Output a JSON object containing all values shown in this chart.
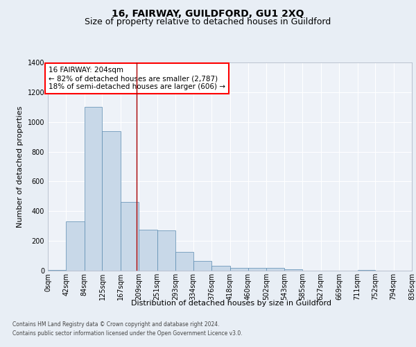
{
  "title": "16, FAIRWAY, GUILDFORD, GU1 2XQ",
  "subtitle": "Size of property relative to detached houses in Guildford",
  "xlabel": "Distribution of detached houses by size in Guildford",
  "ylabel": "Number of detached properties",
  "footer_line1": "Contains HM Land Registry data © Crown copyright and database right 2024.",
  "footer_line2": "Contains public sector information licensed under the Open Government Licence v3.0.",
  "bar_color": "#c8d8e8",
  "bar_edge_color": "#5a8ab0",
  "background_color": "#e8eef5",
  "plot_bg_color": "#eef2f8",
  "annotation_text_line1": "16 FAIRWAY: 204sqm",
  "annotation_text_line2": "← 82% of detached houses are smaller (2,787)",
  "annotation_text_line3": "18% of semi-detached houses are larger (606) →",
  "vline_x": 204,
  "bin_edges": [
    0,
    42,
    84,
    125,
    167,
    209,
    251,
    293,
    334,
    376,
    418,
    460,
    502,
    543,
    585,
    627,
    669,
    711,
    752,
    794,
    836
  ],
  "bin_values": [
    5,
    330,
    1100,
    940,
    460,
    275,
    270,
    125,
    65,
    35,
    20,
    20,
    20,
    10,
    0,
    0,
    0,
    5,
    0,
    0
  ],
  "ylim": [
    0,
    1400
  ],
  "yticks": [
    0,
    200,
    400,
    600,
    800,
    1000,
    1200,
    1400
  ],
  "title_fontsize": 10,
  "subtitle_fontsize": 9,
  "tick_fontsize": 7,
  "ylabel_fontsize": 8,
  "xlabel_fontsize": 8,
  "footer_fontsize": 5.5,
  "annotation_fontsize": 7.5
}
